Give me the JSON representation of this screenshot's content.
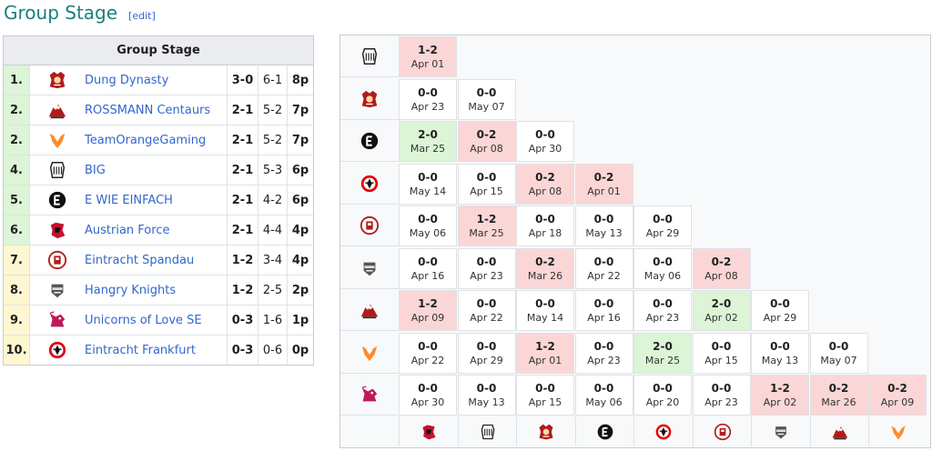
{
  "heading": {
    "title": "Group Stage",
    "edit": "edit"
  },
  "standings": {
    "header": "Group Stage",
    "rows": [
      {
        "rank": "1.",
        "team": "Dung Dynasty",
        "mr": "3-0",
        "gr": "6-1",
        "pts": "8p",
        "color": "green",
        "logo": "dung-dynasty"
      },
      {
        "rank": "2.",
        "team": "ROSSMANN Centaurs",
        "mr": "2-1",
        "gr": "5-2",
        "pts": "7p",
        "color": "green",
        "logo": "rossmann-centaurs"
      },
      {
        "rank": "2.",
        "team": "TeamOrangeGaming",
        "mr": "2-1",
        "gr": "5-2",
        "pts": "7p",
        "color": "green",
        "logo": "team-orange-gaming"
      },
      {
        "rank": "4.",
        "team": "BIG",
        "mr": "2-1",
        "gr": "5-3",
        "pts": "6p",
        "color": "green",
        "logo": "big"
      },
      {
        "rank": "5.",
        "team": "E WIE EINFACH",
        "mr": "2-1",
        "gr": "4-2",
        "pts": "6p",
        "color": "green",
        "logo": "e-wie-einfach"
      },
      {
        "rank": "6.",
        "team": "Austrian Force",
        "mr": "2-1",
        "gr": "4-4",
        "pts": "4p",
        "color": "green",
        "logo": "austrian-force"
      },
      {
        "rank": "7.",
        "team": "Eintracht Spandau",
        "mr": "1-2",
        "gr": "3-4",
        "pts": "4p",
        "color": "yellow",
        "logo": "eintracht-spandau"
      },
      {
        "rank": "8.",
        "team": "Hangry Knights",
        "mr": "1-2",
        "gr": "2-5",
        "pts": "2p",
        "color": "yellow",
        "logo": "hangry-knights"
      },
      {
        "rank": "9.",
        "team": "Unicorns of Love SE",
        "mr": "0-3",
        "gr": "1-6",
        "pts": "1p",
        "color": "yellow",
        "logo": "unicorns-of-love"
      },
      {
        "rank": "10.",
        "team": "Eintracht Frankfurt",
        "mr": "0-3",
        "gr": "0-6",
        "pts": "0p",
        "color": "yellow",
        "logo": "eintracht-frankfurt"
      }
    ]
  },
  "crosstable": {
    "row_logos": [
      "big",
      "dung-dynasty",
      "e-wie-einfach",
      "eintracht-frankfurt",
      "eintracht-spandau",
      "hangry-knights",
      "rossmann-centaurs",
      "team-orange-gaming",
      "unicorns-of-love"
    ],
    "col_logos": [
      "austrian-force",
      "big",
      "dung-dynasty",
      "e-wie-einfach",
      "eintracht-frankfurt",
      "eintracht-spandau",
      "hangry-knights",
      "rossmann-centaurs",
      "team-orange-gaming"
    ],
    "rows": [
      [
        {
          "s": "1-2",
          "d": "Apr 01",
          "r": "loss"
        }
      ],
      [
        {
          "s": "0-0",
          "d": "Apr 23",
          "r": ""
        },
        {
          "s": "0-0",
          "d": "May 07",
          "r": ""
        }
      ],
      [
        {
          "s": "2-0",
          "d": "Mar 25",
          "r": "win"
        },
        {
          "s": "0-2",
          "d": "Apr 08",
          "r": "loss"
        },
        {
          "s": "0-0",
          "d": "Apr 30",
          "r": ""
        }
      ],
      [
        {
          "s": "0-0",
          "d": "May 14",
          "r": ""
        },
        {
          "s": "0-0",
          "d": "Apr 15",
          "r": ""
        },
        {
          "s": "0-2",
          "d": "Apr 08",
          "r": "loss"
        },
        {
          "s": "0-2",
          "d": "Apr 01",
          "r": "loss"
        }
      ],
      [
        {
          "s": "0-0",
          "d": "May 06",
          "r": ""
        },
        {
          "s": "1-2",
          "d": "Mar 25",
          "r": "loss"
        },
        {
          "s": "0-0",
          "d": "Apr 18",
          "r": ""
        },
        {
          "s": "0-0",
          "d": "May 13",
          "r": ""
        },
        {
          "s": "0-0",
          "d": "Apr 29",
          "r": ""
        }
      ],
      [
        {
          "s": "0-0",
          "d": "Apr 16",
          "r": ""
        },
        {
          "s": "0-0",
          "d": "Apr 23",
          "r": ""
        },
        {
          "s": "0-2",
          "d": "Mar 26",
          "r": "loss"
        },
        {
          "s": "0-0",
          "d": "Apr 22",
          "r": ""
        },
        {
          "s": "0-0",
          "d": "May 06",
          "r": ""
        },
        {
          "s": "0-2",
          "d": "Apr 08",
          "r": "loss"
        }
      ],
      [
        {
          "s": "1-2",
          "d": "Apr 09",
          "r": "loss"
        },
        {
          "s": "0-0",
          "d": "Apr 22",
          "r": ""
        },
        {
          "s": "0-0",
          "d": "May 14",
          "r": ""
        },
        {
          "s": "0-0",
          "d": "Apr 16",
          "r": ""
        },
        {
          "s": "0-0",
          "d": "Apr 23",
          "r": ""
        },
        {
          "s": "2-0",
          "d": "Apr 02",
          "r": "win"
        },
        {
          "s": "0-0",
          "d": "Apr 29",
          "r": ""
        }
      ],
      [
        {
          "s": "0-0",
          "d": "Apr 22",
          "r": ""
        },
        {
          "s": "0-0",
          "d": "Apr 29",
          "r": ""
        },
        {
          "s": "1-2",
          "d": "Apr 01",
          "r": "loss"
        },
        {
          "s": "0-0",
          "d": "Apr 23",
          "r": ""
        },
        {
          "s": "2-0",
          "d": "Mar 25",
          "r": "win"
        },
        {
          "s": "0-0",
          "d": "Apr 15",
          "r": ""
        },
        {
          "s": "0-0",
          "d": "May 13",
          "r": ""
        },
        {
          "s": "0-0",
          "d": "May 07",
          "r": ""
        }
      ],
      [
        {
          "s": "0-0",
          "d": "Apr 30",
          "r": ""
        },
        {
          "s": "0-0",
          "d": "May 13",
          "r": ""
        },
        {
          "s": "0-0",
          "d": "Apr 15",
          "r": ""
        },
        {
          "s": "0-0",
          "d": "May 06",
          "r": ""
        },
        {
          "s": "0-0",
          "d": "Apr 20",
          "r": ""
        },
        {
          "s": "0-0",
          "d": "Apr 23",
          "r": ""
        },
        {
          "s": "1-2",
          "d": "Apr 02",
          "r": "loss"
        },
        {
          "s": "0-2",
          "d": "Mar 26",
          "r": "loss"
        },
        {
          "s": "0-2",
          "d": "Apr 09",
          "r": "loss"
        }
      ]
    ]
  },
  "colors": {
    "win": "#dcf5d6",
    "loss": "#fbd6d6",
    "heading": "#1a7f7f",
    "link": "#3366cc"
  }
}
